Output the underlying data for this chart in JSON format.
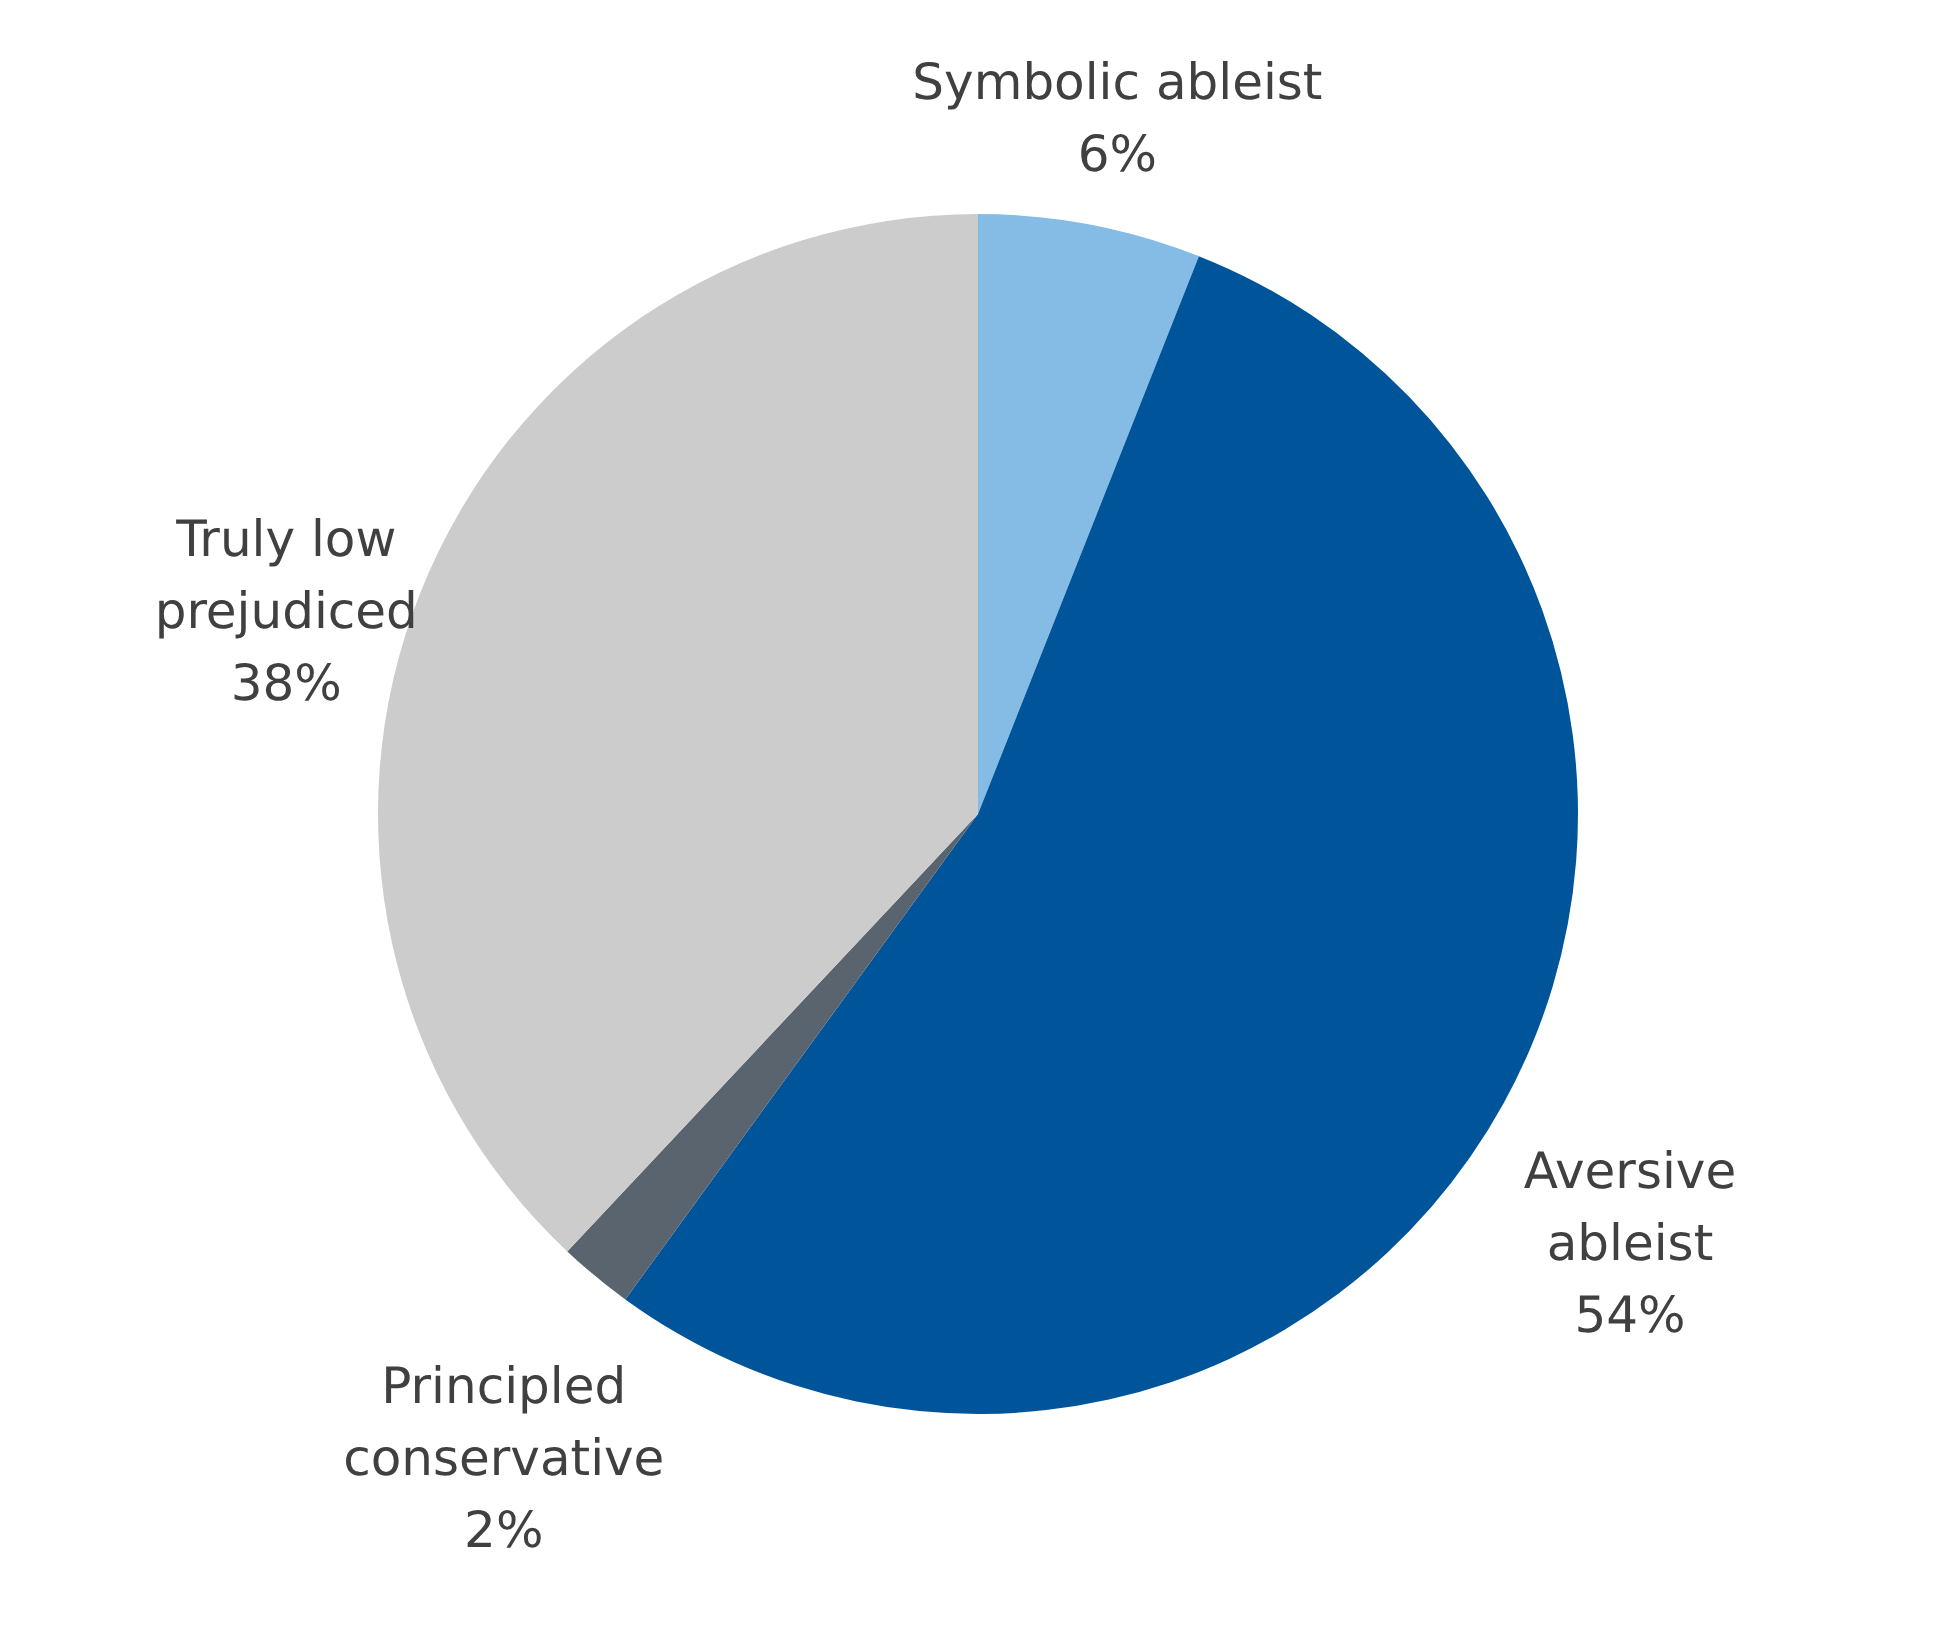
{
  "chart_data": {
    "type": "pie",
    "categories": [
      "Symbolic ableist",
      "Aversive\nableist",
      "Principled\nconservative",
      "Truly low\nprejudiced"
    ],
    "values": [
      6,
      54,
      2,
      38
    ],
    "value_labels": [
      "6%",
      "54%",
      "2%",
      "38%"
    ],
    "colors": [
      "#85bce6",
      "#00559a",
      "#59646e",
      "#cccccc"
    ]
  }
}
